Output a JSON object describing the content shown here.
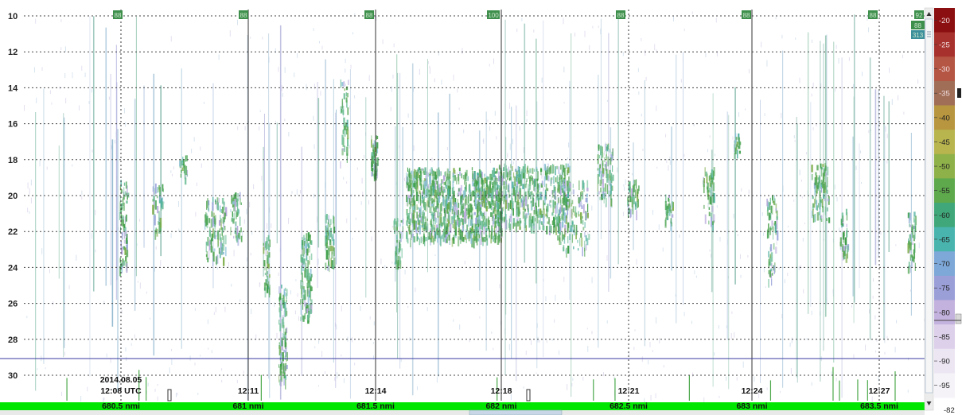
{
  "depth_axis": {
    "ticks": [
      10,
      12,
      14,
      16,
      18,
      20,
      22,
      24,
      26,
      28,
      30
    ]
  },
  "time_axis": {
    "date": "2014.08.05",
    "markers": [
      {
        "time": "12:08 UTC",
        "distance": "680.5 nmi"
      },
      {
        "time": "12:11",
        "distance": "681 nmi"
      },
      {
        "time": "12:14",
        "distance": "681.5 nmi"
      },
      {
        "time": "12:18",
        "distance": "682 nmi"
      },
      {
        "time": "12:21",
        "distance": "682.5 nmi"
      },
      {
        "time": "12:24",
        "distance": "683 nmi"
      },
      {
        "time": "12:27",
        "distance": "683.5 nmi"
      }
    ]
  },
  "ping_tags": [
    "88",
    "88",
    "88",
    "100",
    "88",
    "88",
    "88",
    "92"
  ],
  "side_tags": [
    "88",
    "313"
  ],
  "color_scale": {
    "values": [
      -20,
      -25,
      -30,
      -35,
      -40,
      -45,
      -50,
      -55,
      -60,
      -65,
      -70,
      -75,
      -80,
      -85,
      -90,
      -95
    ],
    "bottom_value": "-82",
    "colors": [
      "#8b0e10",
      "#a7322d",
      "#b55543",
      "#a06d57",
      "#b7963f",
      "#b8b44e",
      "#8fb14a",
      "#5ea94c",
      "#3fa77a",
      "#49b4ae",
      "#7da8d8",
      "#9b9fd8",
      "#c4b2de",
      "#ddd0ea",
      "#ece6f3",
      "#f6f3f8"
    ]
  },
  "colors": {
    "bottom_bar": "#00e600",
    "bottom_line": "#3a3aa0"
  }
}
